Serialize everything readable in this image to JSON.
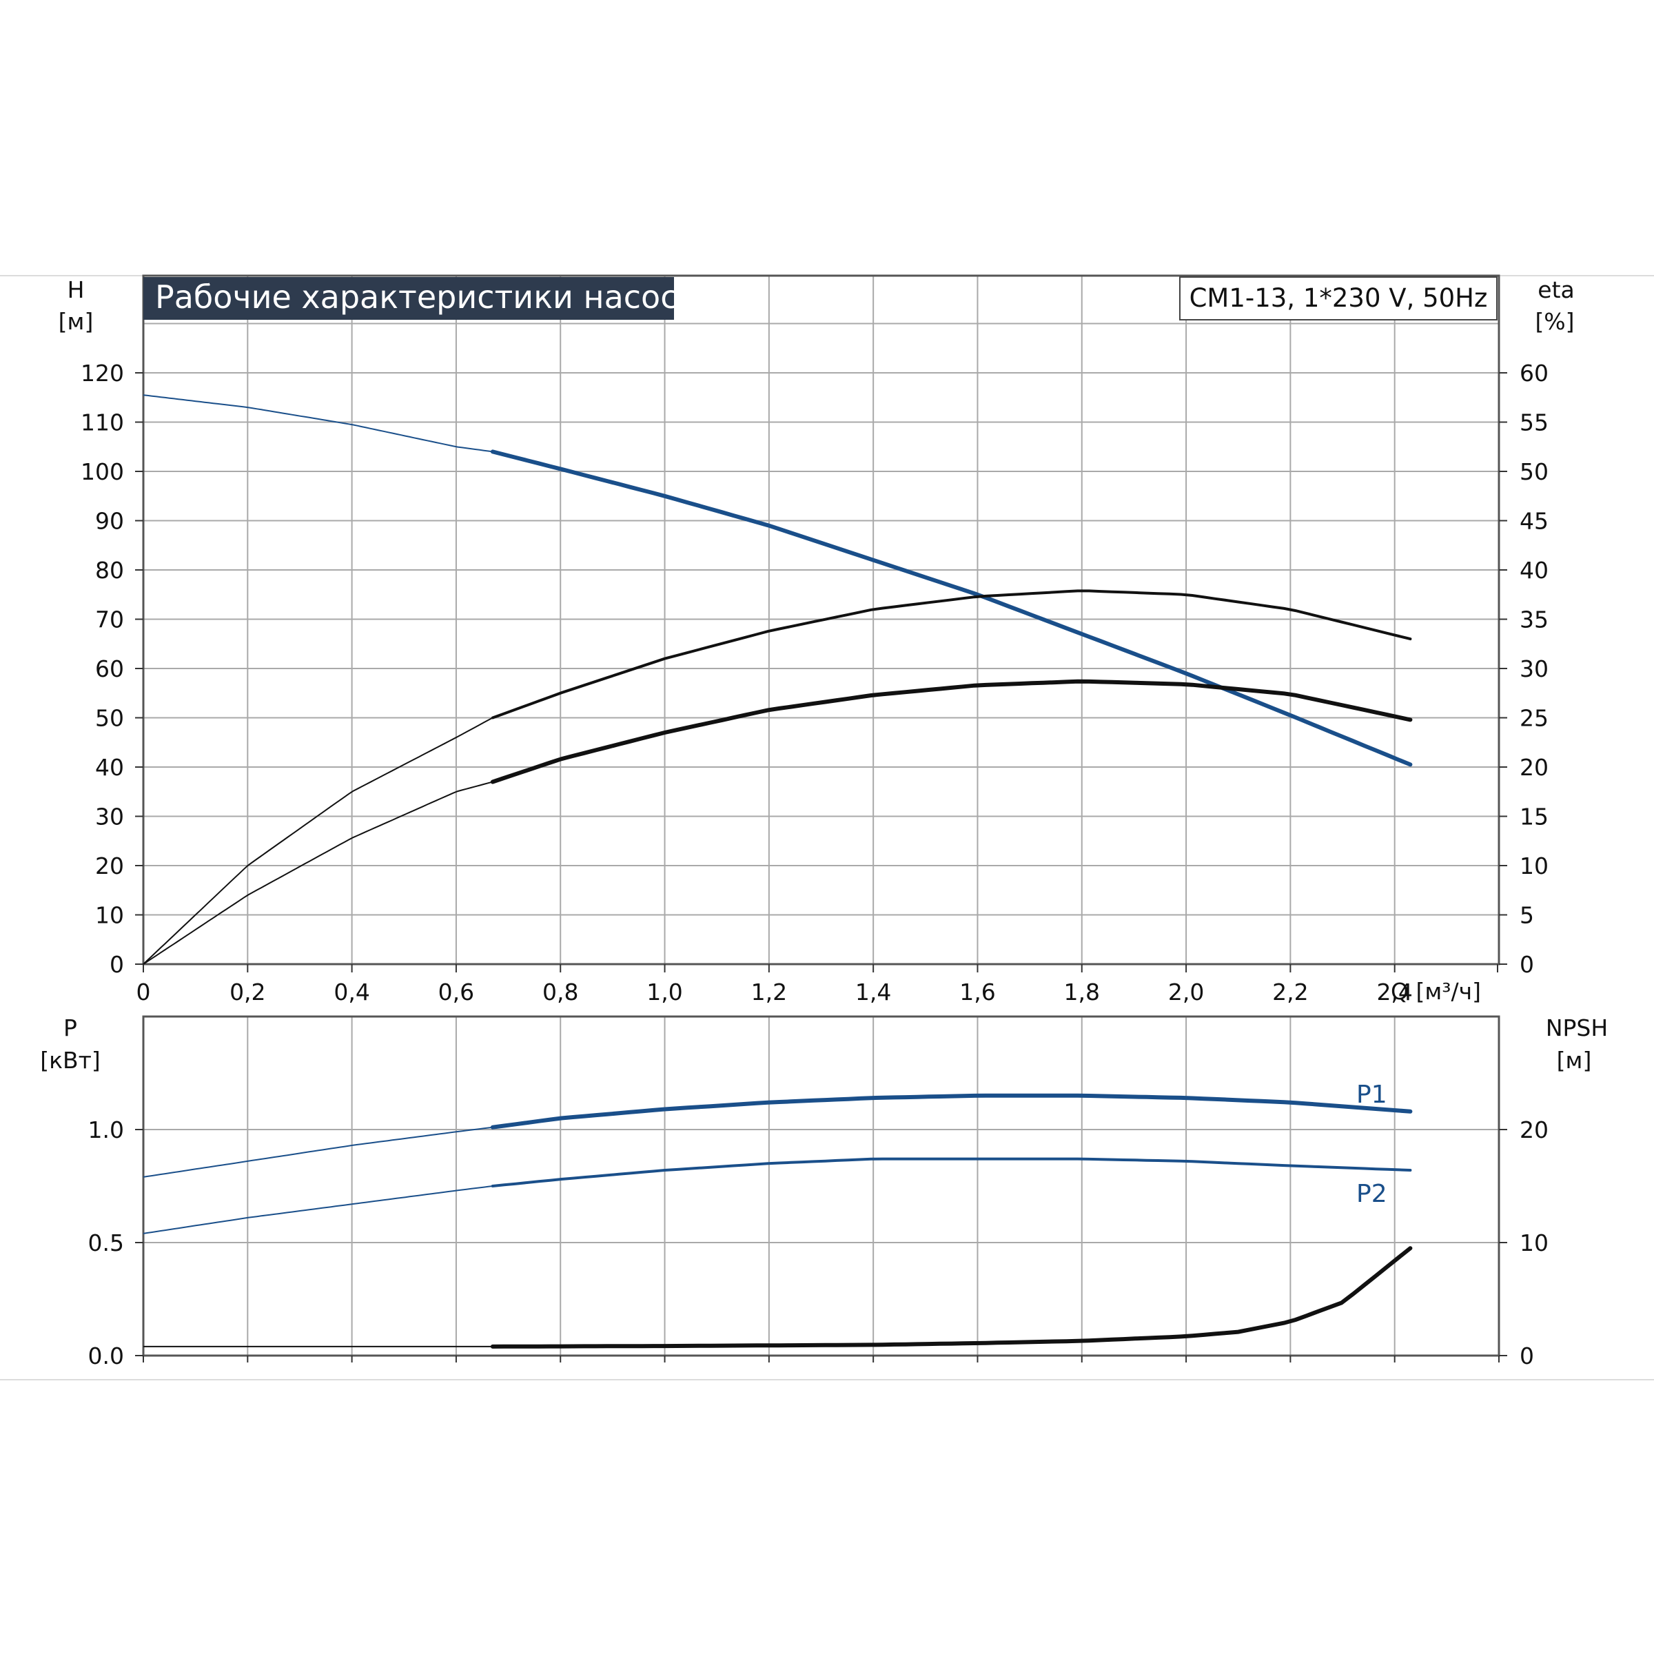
{
  "title": "Рабочие характеристики насоса",
  "model": "CM1-13, 1*230 V, 50Hz",
  "colors": {
    "blue": "#1a4f8a",
    "black": "#111111",
    "grid": "#a9a9a9",
    "title_bg": "#2e3b4e"
  },
  "chart_data": [
    {
      "type": "line",
      "name": "performance",
      "xlabel": "Q [м³/ч]",
      "ylabel_left": {
        "symbol": "H",
        "unit": "[м]"
      },
      "ylabel_right": {
        "symbol": "eta",
        "unit": "[%]"
      },
      "xlim": [
        0,
        2.6
      ],
      "ylim_left": [
        0,
        130
      ],
      "ylim_right": [
        0,
        65
      ],
      "x_ticks": [
        "0",
        "0,2",
        "0,4",
        "0,6",
        "0,8",
        "1,0",
        "1,2",
        "1,4",
        "1,6",
        "1,8",
        "2,0",
        "2,2",
        "2,4"
      ],
      "y_ticks_left": [
        "0",
        "10",
        "20",
        "30",
        "40",
        "50",
        "60",
        "70",
        "80",
        "90",
        "100",
        "110",
        "120"
      ],
      "y_ticks_right": [
        "0",
        "5",
        "10",
        "15",
        "20",
        "25",
        "30",
        "35",
        "40",
        "45",
        "50",
        "55",
        "60"
      ],
      "grid": true,
      "series": [
        {
          "key": "H",
          "axis": "left",
          "color": "blue",
          "operating_range": [
            0.67,
            2.43
          ],
          "x": [
            0,
            0.2,
            0.4,
            0.6,
            0.67,
            0.8,
            1.0,
            1.2,
            1.4,
            1.6,
            1.8,
            2.0,
            2.2,
            2.43
          ],
          "y": [
            115.5,
            113,
            109.5,
            105,
            104,
            100.5,
            95,
            89,
            82,
            75,
            67,
            59,
            50.5,
            40.5
          ]
        },
        {
          "key": "eta_upper",
          "axis": "right",
          "color": "black",
          "operating_range": [
            0.67,
            2.43
          ],
          "x": [
            0,
            0.2,
            0.4,
            0.6,
            0.67,
            0.8,
            1.0,
            1.2,
            1.4,
            1.6,
            1.8,
            2.0,
            2.2,
            2.43
          ],
          "y": [
            0,
            10,
            17.5,
            23,
            25,
            27.5,
            31,
            33.8,
            36,
            37.3,
            37.9,
            37.5,
            36,
            33
          ]
        },
        {
          "key": "eta_lower",
          "axis": "right",
          "color": "black",
          "operating_range": [
            0.67,
            2.43
          ],
          "x": [
            0,
            0.2,
            0.4,
            0.6,
            0.67,
            0.8,
            1.0,
            1.2,
            1.4,
            1.6,
            1.8,
            2.0,
            2.2,
            2.43
          ],
          "y": [
            0,
            7,
            12.8,
            17.5,
            18.5,
            20.8,
            23.5,
            25.8,
            27.3,
            28.3,
            28.7,
            28.4,
            27.4,
            24.8
          ]
        }
      ]
    },
    {
      "type": "line",
      "name": "power-npsh",
      "ylabel_left": {
        "symbol": "P",
        "unit": "[кВт]"
      },
      "ylabel_right": {
        "symbol": "NPSH",
        "unit": "[м]"
      },
      "xlim": [
        0,
        2.6
      ],
      "ylim_left": [
        0,
        1.5
      ],
      "ylim_right": [
        0,
        30
      ],
      "y_ticks_left": [
        {
          "v": 0,
          "label": "0.0"
        },
        {
          "v": 0.5,
          "label": "0.5"
        },
        {
          "v": 1.0,
          "label": "1.0"
        }
      ],
      "y_ticks_right": [
        {
          "v": 0,
          "label": "0"
        },
        {
          "v": 10,
          "label": "10"
        },
        {
          "v": 20,
          "label": "20"
        }
      ],
      "grid": true,
      "series": [
        {
          "key": "P1",
          "name": "P1",
          "axis": "left",
          "color": "blue",
          "operating_range": [
            0.67,
            2.43
          ],
          "x": [
            0,
            0.2,
            0.4,
            0.6,
            0.67,
            0.8,
            1.0,
            1.2,
            1.4,
            1.6,
            1.8,
            2.0,
            2.2,
            2.43
          ],
          "y": [
            0.79,
            0.86,
            0.93,
            0.99,
            1.01,
            1.05,
            1.09,
            1.12,
            1.14,
            1.15,
            1.15,
            1.14,
            1.12,
            1.08
          ]
        },
        {
          "key": "P2",
          "name": "P2",
          "axis": "left",
          "color": "blue",
          "operating_range": [
            0.67,
            2.43
          ],
          "x": [
            0,
            0.2,
            0.4,
            0.6,
            0.67,
            0.8,
            1.0,
            1.2,
            1.4,
            1.6,
            1.8,
            2.0,
            2.2,
            2.43
          ],
          "y": [
            0.54,
            0.61,
            0.67,
            0.73,
            0.75,
            0.78,
            0.82,
            0.85,
            0.87,
            0.87,
            0.87,
            0.86,
            0.84,
            0.82
          ]
        },
        {
          "key": "NPSH",
          "axis": "right",
          "color": "black",
          "operating_range": [
            0.67,
            2.43
          ],
          "x": [
            0,
            0.67,
            1.0,
            1.4,
            1.6,
            1.8,
            2.0,
            2.1,
            2.2,
            2.3,
            2.43
          ],
          "y": [
            0.8,
            0.8,
            0.85,
            0.95,
            1.1,
            1.3,
            1.7,
            2.1,
            3.0,
            4.7,
            9.5
          ]
        }
      ]
    }
  ]
}
